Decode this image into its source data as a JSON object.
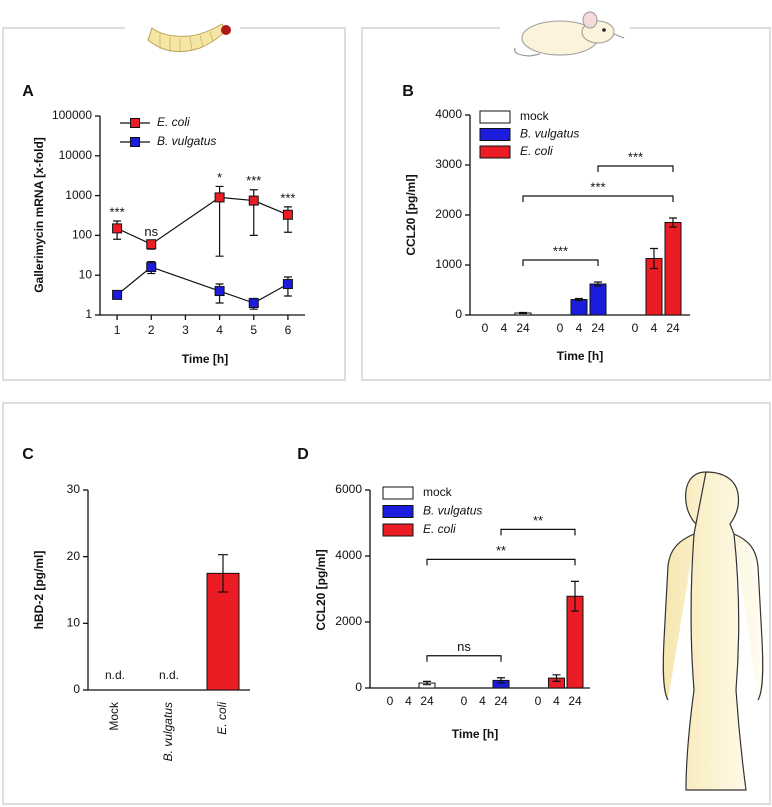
{
  "chart_data": [
    {
      "type": "line",
      "panel": "A",
      "xlabel": "Time [h]",
      "ylabel": "Gallerimycin mRNA [x-fold]",
      "log_y": true,
      "xlim": [
        0.5,
        6.5
      ],
      "xticks": [
        1,
        2,
        3,
        4,
        5,
        6
      ],
      "ylim": [
        1,
        100000
      ],
      "yticks": [
        1,
        10,
        100,
        1000,
        10000,
        100000
      ],
      "legend": "upper left",
      "series": [
        {
          "name": "E. coli",
          "color": "#ec1c24",
          "x": [
            1,
            2,
            4,
            5,
            6
          ],
          "values": [
            150,
            60,
            900,
            750,
            330
          ],
          "error_low": [
            80,
            45,
            30,
            100,
            120
          ],
          "error_high": [
            230,
            75,
            1700,
            1400,
            520
          ],
          "significance": [
            "***",
            "ns",
            "*",
            "***",
            "***"
          ]
        },
        {
          "name": "B. vulgatus",
          "color": "#1c1cdc",
          "x": [
            1,
            2,
            4,
            5,
            6
          ],
          "values": [
            3.2,
            16,
            4,
            2,
            6
          ],
          "error_low": [
            2.8,
            11,
            2,
            1.4,
            3
          ],
          "error_high": [
            3.6,
            22,
            6,
            2.6,
            9
          ]
        }
      ]
    },
    {
      "type": "grouped_bar",
      "panel": "B",
      "xlabel": "Time [h]",
      "ylabel": "CCL20 [pg/ml]",
      "categories": [
        "0",
        "4",
        "24"
      ],
      "ylim": [
        0,
        4000
      ],
      "yticks": [
        0,
        1000,
        2000,
        3000,
        4000
      ],
      "legend": "upper left",
      "series": [
        {
          "name": "mock",
          "color": "#ffffff",
          "values": [
            0,
            0,
            40
          ],
          "errors": [
            0,
            0,
            10
          ]
        },
        {
          "name": "B. vulgatus",
          "color": "#1c1cdc",
          "values": [
            0,
            310,
            620
          ],
          "errors": [
            0,
            20,
            40
          ]
        },
        {
          "name": "E. coli",
          "color": "#ec1c24",
          "values": [
            0,
            1130,
            1850
          ],
          "errors": [
            0,
            200,
            90
          ]
        }
      ],
      "comparisons": [
        {
          "between": [
            "mock",
            "B. vulgatus"
          ],
          "at": "24",
          "label": "***"
        },
        {
          "between": [
            "mock",
            "E. coli"
          ],
          "at": "24",
          "label": "***"
        },
        {
          "between": [
            "B. vulgatus",
            "E. coli"
          ],
          "at": "24",
          "label": "***"
        }
      ]
    },
    {
      "type": "bar",
      "panel": "C",
      "ylabel": "hBD-2 [pg/ml]",
      "categories": [
        "Mock",
        "B. vulgatus",
        "E. coli"
      ],
      "values": [
        null,
        null,
        17.5
      ],
      "errors": [
        null,
        null,
        2.8
      ],
      "value_labels": [
        "n.d.",
        "n.d.",
        null
      ],
      "color": "#ec1c24",
      "ylim": [
        0,
        30
      ],
      "yticks": [
        0,
        10,
        20,
        30
      ]
    },
    {
      "type": "grouped_bar",
      "panel": "D",
      "xlabel": "Time [h]",
      "ylabel": "CCL20 [pg/ml]",
      "categories": [
        "0",
        "4",
        "24"
      ],
      "ylim": [
        0,
        6000
      ],
      "yticks": [
        0,
        2000,
        4000,
        6000
      ],
      "legend": "upper left",
      "series": [
        {
          "name": "mock",
          "color": "#ffffff",
          "values": [
            0,
            0,
            150
          ],
          "errors": [
            0,
            0,
            50
          ]
        },
        {
          "name": "B. vulgatus",
          "color": "#1c1cdc",
          "values": [
            0,
            0,
            230
          ],
          "errors": [
            0,
            0,
            80
          ]
        },
        {
          "name": "E. coli",
          "color": "#ec1c24",
          "values": [
            0,
            300,
            2780
          ],
          "errors": [
            0,
            100,
            450
          ]
        }
      ],
      "comparisons": [
        {
          "between": [
            "mock",
            "B. vulgatus"
          ],
          "at": "24",
          "label": "ns"
        },
        {
          "between": [
            "mock",
            "E. coli"
          ],
          "at": "24",
          "label": "**"
        },
        {
          "between": [
            "B. vulgatus",
            "E. coli"
          ],
          "at": "24",
          "label": "**"
        }
      ]
    }
  ]
}
